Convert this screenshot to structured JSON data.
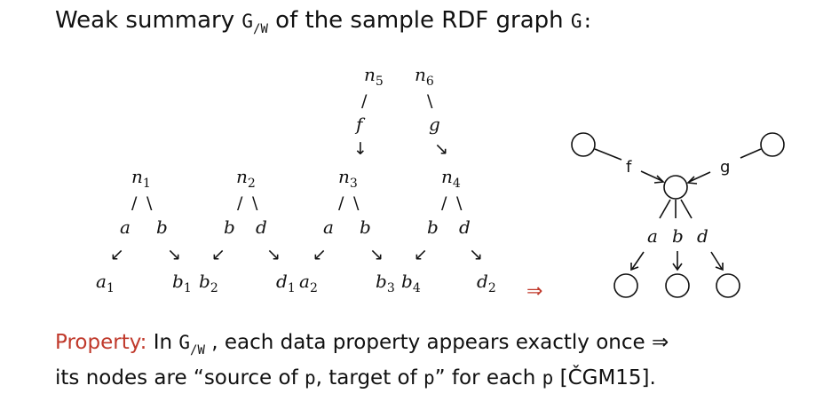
{
  "title": {
    "prefix": "Weak summary ",
    "graph_symbol": "G",
    "graph_sub": "/W",
    "middle": " of the sample RDF graph ",
    "graph_name": "G:"
  },
  "left_graph": {
    "top_nodes": [
      {
        "base": "n",
        "sub": "5"
      },
      {
        "base": "n",
        "sub": "6"
      }
    ],
    "top_edge_labels": [
      "f",
      "g"
    ],
    "mid_nodes": [
      {
        "base": "n",
        "sub": "1"
      },
      {
        "base": "n",
        "sub": "2"
      },
      {
        "base": "n",
        "sub": "3"
      },
      {
        "base": "n",
        "sub": "4"
      }
    ],
    "edge_labels": [
      "a",
      "b",
      "b",
      "d",
      "a",
      "b",
      "b",
      "d"
    ],
    "leaf_nodes": [
      {
        "base": "a",
        "sub": "1"
      },
      {
        "base": "b",
        "sub": "1"
      },
      {
        "base": "b",
        "sub": "2"
      },
      {
        "base": "d",
        "sub": "1"
      },
      {
        "base": "a",
        "sub": "2"
      },
      {
        "base": "b",
        "sub": "3"
      },
      {
        "base": "b",
        "sub": "4"
      },
      {
        "base": "d",
        "sub": "2"
      }
    ]
  },
  "implies_symbol": "⇒",
  "summary_graph": {
    "edge_labels": {
      "f": "f",
      "g": "g",
      "a": "a",
      "b": "b",
      "d": "d"
    }
  },
  "property": {
    "label": "Property:",
    "line1_prefix": " In ",
    "graph_symbol": "G",
    "graph_sub": "/W",
    "line1_suffix": " , each data property appears exactly once ⇒",
    "line2_a": "its nodes are “source of ",
    "p1": "p",
    "line2_b": ", target of ",
    "p2": "p",
    "line2_c": "” for each ",
    "p3": "p",
    "line2_d": " [ČGM15]."
  },
  "colors": {
    "accent": "#c0392b",
    "text": "#111111"
  }
}
